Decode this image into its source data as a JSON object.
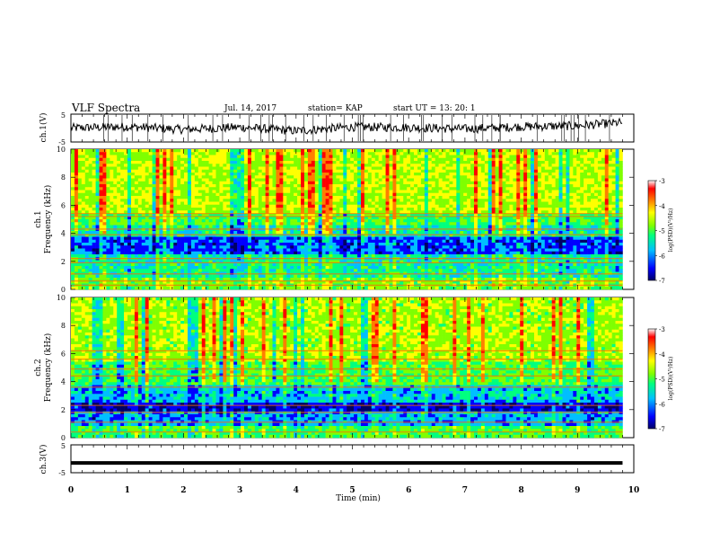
{
  "header": {
    "title": "VLF Spectra",
    "date": "Jul. 14, 2017",
    "station": "station= KAP",
    "start": "start UT = 13: 20: 1"
  },
  "chart_data": [
    {
      "type": "line",
      "panel": "ch1-waveform",
      "ylabel": "ch.1(V)",
      "ylim": [
        -5,
        5
      ],
      "yticks": [
        "5",
        "-5"
      ],
      "xlim": [
        0,
        10
      ],
      "x": [
        0,
        1,
        2,
        3,
        4,
        5,
        6,
        7,
        8,
        9,
        9.8
      ],
      "y": [
        0,
        0.5,
        -0.5,
        0.3,
        -1,
        0.4,
        0.2,
        -0.3,
        0.5,
        0.8,
        2
      ]
    },
    {
      "type": "heatmap",
      "panel": "ch1-spectrogram",
      "ylabel": "ch.1 Frequency (kHz)",
      "ylim": [
        0,
        10
      ],
      "yticks": [
        "0",
        "2",
        "4",
        "6",
        "8",
        "10"
      ],
      "xlim": [
        0,
        10
      ],
      "colorbar": {
        "label": "log(PSD)(V²/Hz)",
        "ticks": [
          "-3",
          "-4",
          "-5",
          "-6",
          "-7"
        ],
        "range": [
          -7,
          -3
        ]
      }
    },
    {
      "type": "heatmap",
      "panel": "ch2-spectrogram",
      "ylabel": "ch.2 Frequency (kHz)",
      "ylim": [
        0,
        10
      ],
      "yticks": [
        "0",
        "2",
        "4",
        "6",
        "8",
        "10"
      ],
      "xlim": [
        0,
        10
      ],
      "colorbar": {
        "label": "log(PSD)(V²/Hz)",
        "ticks": [
          "-3",
          "-4",
          "-5",
          "-6",
          "-7"
        ],
        "range": [
          -7,
          -3
        ]
      }
    },
    {
      "type": "line",
      "panel": "ch3-waveform",
      "ylabel": "ch.3(V)",
      "ylim": [
        -5,
        5
      ],
      "yticks": [
        "5",
        "-5"
      ],
      "xlim": [
        0,
        9.8
      ],
      "x": [
        0,
        9.8
      ],
      "y": [
        -1.5,
        -1.5
      ]
    }
  ],
  "xaxis": {
    "label": "Time (min)",
    "ticks": [
      "0",
      "1",
      "2",
      "3",
      "4",
      "5",
      "6",
      "7",
      "8",
      "9",
      "10"
    ]
  },
  "colors": {
    "colormap": [
      "#000066",
      "#0000ff",
      "#00bfff",
      "#00ff7f",
      "#7fff00",
      "#ffff00",
      "#ff7f00",
      "#ff0000",
      "#ffffff"
    ]
  }
}
